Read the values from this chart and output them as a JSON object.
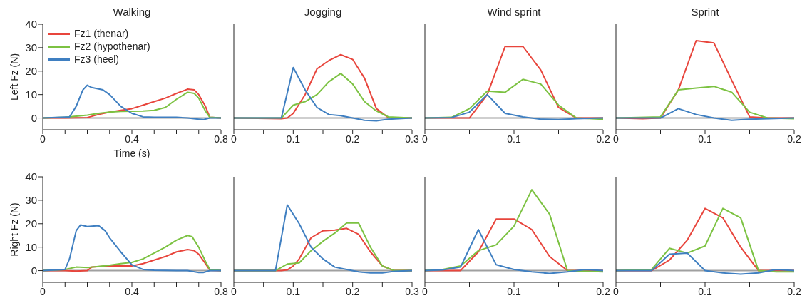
{
  "chart_data": [
    {
      "type": "line",
      "title": "Walking",
      "xlabel": "Time (s)",
      "ylabel": "Left Fz (N)",
      "legend": "top left",
      "xlim": [
        0,
        0.8
      ],
      "xticks": [
        0,
        {
          "value": 0.1,
          "label": null
        },
        {
          "value": 0.2,
          "label": null
        },
        {
          "value": 0.3,
          "label": null
        },
        0.4,
        {
          "value": 0.5,
          "label": null
        },
        {
          "value": 0.6,
          "label": null
        },
        {
          "value": 0.7,
          "label": null
        },
        0.8
      ],
      "ylim": [
        -5,
        40
      ],
      "yticks": [
        0,
        10,
        20,
        30,
        40
      ],
      "ref_lines": [
        {
          "axis": "y",
          "value": 0,
          "color": "#a0a0a0"
        }
      ],
      "series": [
        {
          "name": "Fz1 (thenar)",
          "color": "#e8453c",
          "x": [
            0,
            0.1,
            0.2,
            0.25,
            0.3,
            0.35,
            0.4,
            0.45,
            0.5,
            0.55,
            0.6,
            0.65,
            0.68,
            0.7,
            0.73,
            0.75,
            0.8
          ],
          "values": [
            0,
            0,
            0.2,
            1.5,
            2.5,
            3.3,
            4,
            5.5,
            7,
            8.5,
            10.5,
            12.3,
            12,
            10,
            5,
            0.3,
            0
          ]
        },
        {
          "name": "Fz2 (hypothenar)",
          "color": "#7cc242",
          "x": [
            0,
            0.1,
            0.15,
            0.2,
            0.25,
            0.3,
            0.35,
            0.4,
            0.45,
            0.5,
            0.55,
            0.6,
            0.65,
            0.68,
            0.7,
            0.73,
            0.75,
            0.8
          ],
          "values": [
            0,
            0.3,
            0.8,
            1.2,
            2,
            2.5,
            2.8,
            2.9,
            3,
            3.3,
            4.5,
            8,
            11,
            10.5,
            8.5,
            3,
            0.3,
            0
          ]
        },
        {
          "name": "Fz3 (heel)",
          "color": "#3f7fc1",
          "x": [
            0,
            0.12,
            0.15,
            0.18,
            0.2,
            0.22,
            0.27,
            0.3,
            0.35,
            0.4,
            0.45,
            0.5,
            0.6,
            0.65,
            0.7,
            0.72,
            0.75,
            0.8
          ],
          "values": [
            0,
            0.5,
            5,
            12,
            14,
            13,
            12,
            10,
            5,
            2,
            0.5,
            0.3,
            0.3,
            0,
            -0.5,
            -0.7,
            0,
            0
          ]
        }
      ]
    },
    {
      "type": "line",
      "title": "Jogging",
      "tick_labels": "x",
      "xlim": [
        0,
        0.3
      ],
      "xticks": [
        0,
        {
          "value": 0.05,
          "label": null
        },
        0.1,
        {
          "value": 0.15,
          "label": null
        },
        0.2,
        {
          "value": 0.25,
          "label": null
        },
        0.3
      ],
      "ylim": [
        -5,
        40
      ],
      "yticks": [
        0,
        10,
        20,
        30,
        40
      ],
      "ref_lines": [
        {
          "axis": "y",
          "value": 0,
          "color": "#a0a0a0"
        }
      ],
      "series": [
        {
          "color": "#e8453c",
          "x": [
            0,
            0.08,
            0.09,
            0.1,
            0.12,
            0.14,
            0.16,
            0.18,
            0.2,
            0.22,
            0.24,
            0.26,
            0.3
          ],
          "values": [
            0,
            -0.3,
            0,
            2,
            10,
            21,
            24.5,
            27,
            25,
            17,
            4,
            0.2,
            0
          ]
        },
        {
          "color": "#7cc242",
          "x": [
            0,
            0.08,
            0.1,
            0.12,
            0.14,
            0.16,
            0.18,
            0.2,
            0.22,
            0.24,
            0.26,
            0.3
          ],
          "values": [
            0,
            0,
            5.5,
            7,
            10,
            15.5,
            19,
            14.5,
            7,
            3,
            0.5,
            0
          ]
        },
        {
          "color": "#3f7fc1",
          "x": [
            0,
            0.08,
            0.1,
            0.12,
            0.14,
            0.16,
            0.18,
            0.2,
            0.22,
            0.24,
            0.26,
            0.3
          ],
          "values": [
            0,
            0,
            21.5,
            12,
            4.5,
            1.5,
            1,
            0,
            -1,
            -1.2,
            -0.5,
            0
          ]
        }
      ]
    },
    {
      "type": "line",
      "title": "Wind sprint",
      "tick_labels": "x",
      "xlim": [
        0,
        0.2
      ],
      "xticks": [
        0,
        {
          "value": 0.05,
          "label": null
        },
        0.1,
        {
          "value": 0.15,
          "label": null
        },
        0.2
      ],
      "ylim": [
        -5,
        40
      ],
      "yticks": [
        0,
        10,
        20,
        30,
        40
      ],
      "ref_lines": [
        {
          "axis": "y",
          "value": 0,
          "color": "#a0a0a0"
        }
      ],
      "series": [
        {
          "color": "#e8453c",
          "x": [
            0,
            0.03,
            0.05,
            0.07,
            0.09,
            0.11,
            0.13,
            0.15,
            0.17,
            0.2
          ],
          "values": [
            0,
            0,
            0,
            10,
            30.5,
            30.5,
            20.5,
            4.5,
            0,
            0
          ]
        },
        {
          "color": "#7cc242",
          "x": [
            0,
            0.03,
            0.05,
            0.07,
            0.09,
            0.11,
            0.13,
            0.15,
            0.17,
            0.2
          ],
          "values": [
            0,
            0.3,
            4,
            11.5,
            11,
            16.5,
            14.5,
            5.5,
            0,
            -0.5
          ]
        },
        {
          "color": "#3f7fc1",
          "x": [
            0,
            0.03,
            0.05,
            0.07,
            0.09,
            0.11,
            0.13,
            0.15,
            0.17,
            0.2
          ],
          "values": [
            0,
            0.2,
            2.5,
            10,
            2,
            0.5,
            -0.5,
            -0.7,
            -0.3,
            0
          ]
        }
      ]
    },
    {
      "type": "line",
      "title": "Sprint",
      "tick_labels": "x",
      "xlim": [
        0,
        0.2
      ],
      "xticks": [
        0,
        {
          "value": 0.05,
          "label": null
        },
        0.1,
        {
          "value": 0.15,
          "label": null
        },
        0.2
      ],
      "ylim": [
        -5,
        40
      ],
      "yticks": [
        0,
        10,
        20,
        30,
        40
      ],
      "ref_lines": [
        {
          "axis": "y",
          "value": 0,
          "color": "#a0a0a0"
        }
      ],
      "series": [
        {
          "color": "#e8453c",
          "x": [
            0,
            0.03,
            0.05,
            0.07,
            0.09,
            0.11,
            0.13,
            0.15,
            0.17,
            0.2
          ],
          "values": [
            0,
            -0.3,
            0,
            12,
            33,
            32,
            16,
            0.5,
            0,
            0
          ]
        },
        {
          "color": "#7cc242",
          "x": [
            0,
            0.05,
            0.07,
            0.09,
            0.11,
            0.13,
            0.15,
            0.17,
            0.2
          ],
          "values": [
            0,
            0.5,
            12,
            12.8,
            13.5,
            11,
            2.5,
            0,
            -0.3
          ]
        },
        {
          "color": "#3f7fc1",
          "x": [
            0,
            0.05,
            0.07,
            0.09,
            0.11,
            0.13,
            0.15,
            0.2
          ],
          "values": [
            0,
            0,
            4,
            1.5,
            0,
            -1,
            -0.5,
            0
          ]
        }
      ]
    },
    {
      "type": "line",
      "ylabel": "Right Fz (N)",
      "xlim": [
        0,
        0.8
      ],
      "xticks": [
        0,
        {
          "value": 0.1,
          "label": null
        },
        {
          "value": 0.2,
          "label": null
        },
        {
          "value": 0.3,
          "label": null
        },
        0.4,
        {
          "value": 0.5,
          "label": null
        },
        {
          "value": 0.6,
          "label": null
        },
        {
          "value": 0.7,
          "label": null
        },
        0.8
      ],
      "ylim": [
        -5,
        40
      ],
      "yticks": [
        0,
        10,
        20,
        30,
        40
      ],
      "ref_lines": [
        {
          "axis": "y",
          "value": 0,
          "color": "#a0a0a0"
        }
      ],
      "series": [
        {
          "color": "#e8453c",
          "x": [
            0,
            0.1,
            0.15,
            0.2,
            0.22,
            0.3,
            0.4,
            0.45,
            0.5,
            0.55,
            0.6,
            0.65,
            0.68,
            0.7,
            0.73,
            0.75,
            0.8
          ],
          "values": [
            0,
            0,
            -0.2,
            0,
            1.5,
            2,
            2,
            3,
            4.5,
            6,
            8,
            9,
            8.5,
            7,
            3,
            0.2,
            0
          ]
        },
        {
          "color": "#7cc242",
          "x": [
            0,
            0.1,
            0.15,
            0.2,
            0.25,
            0.3,
            0.35,
            0.4,
            0.45,
            0.5,
            0.55,
            0.6,
            0.65,
            0.67,
            0.7,
            0.73,
            0.75,
            0.8
          ],
          "values": [
            0,
            0.5,
            1.5,
            1.3,
            1.8,
            2.3,
            3,
            3.5,
            5,
            7.5,
            10,
            13,
            15,
            14.5,
            10,
            4,
            0.5,
            0
          ]
        },
        {
          "color": "#3f7fc1",
          "x": [
            0,
            0.1,
            0.12,
            0.15,
            0.17,
            0.2,
            0.25,
            0.28,
            0.3,
            0.35,
            0.4,
            0.45,
            0.5,
            0.6,
            0.65,
            0.7,
            0.72,
            0.75,
            0.8
          ],
          "values": [
            0,
            0.5,
            5,
            17,
            19.5,
            18.8,
            19.2,
            17,
            14,
            8,
            2.5,
            0.5,
            0.2,
            0,
            0,
            -0.8,
            -0.8,
            0,
            0
          ]
        }
      ]
    },
    {
      "type": "line",
      "tick_labels": "x",
      "xlim": [
        0,
        0.3
      ],
      "xticks": [
        0,
        {
          "value": 0.05,
          "label": null
        },
        0.1,
        {
          "value": 0.15,
          "label": null
        },
        0.2,
        {
          "value": 0.25,
          "label": null
        },
        0.3
      ],
      "ylim": [
        -5,
        40
      ],
      "yticks": [
        0,
        10,
        20,
        30,
        40
      ],
      "ref_lines": [
        {
          "axis": "y",
          "value": 0,
          "color": "#a0a0a0"
        }
      ],
      "series": [
        {
          "color": "#e8453c",
          "x": [
            0,
            0.08,
            0.09,
            0.1,
            0.11,
            0.13,
            0.15,
            0.17,
            0.19,
            0.21,
            0.23,
            0.25,
            0.27,
            0.3
          ],
          "values": [
            0,
            0,
            0.3,
            2,
            5,
            14,
            17,
            17.3,
            18,
            15.5,
            8,
            2,
            0,
            0
          ]
        },
        {
          "color": "#7cc242",
          "x": [
            0,
            0.07,
            0.09,
            0.11,
            0.13,
            0.15,
            0.17,
            0.19,
            0.21,
            0.23,
            0.25,
            0.27,
            0.3
          ],
          "values": [
            0,
            0,
            2.8,
            3.3,
            8.5,
            12.5,
            16,
            20.3,
            20.3,
            10,
            2,
            0,
            0
          ]
        },
        {
          "color": "#3f7fc1",
          "x": [
            0,
            0.07,
            0.09,
            0.11,
            0.13,
            0.15,
            0.17,
            0.19,
            0.21,
            0.23,
            0.25,
            0.27,
            0.3
          ],
          "values": [
            0,
            0,
            28,
            20,
            10,
            5,
            1.5,
            0.5,
            -0.5,
            -1,
            -1,
            -0.3,
            0
          ]
        }
      ]
    },
    {
      "type": "line",
      "tick_labels": "x",
      "xlim": [
        0,
        0.2
      ],
      "xticks": [
        0,
        {
          "value": 0.05,
          "label": null
        },
        0.1,
        {
          "value": 0.15,
          "label": null
        },
        0.2
      ],
      "ylim": [
        -5,
        40
      ],
      "yticks": [
        0,
        10,
        20,
        30,
        40
      ],
      "ref_lines": [
        {
          "axis": "y",
          "value": 0,
          "color": "#a0a0a0"
        }
      ],
      "series": [
        {
          "color": "#e8453c",
          "x": [
            0,
            0.02,
            0.04,
            0.06,
            0.08,
            0.1,
            0.12,
            0.14,
            0.16,
            0.2
          ],
          "values": [
            0,
            0,
            0,
            8,
            22,
            22,
            17.5,
            6,
            0,
            0
          ]
        },
        {
          "color": "#7cc242",
          "x": [
            0,
            0.02,
            0.04,
            0.06,
            0.08,
            0.1,
            0.12,
            0.14,
            0.16,
            0.2
          ],
          "values": [
            0,
            0.5,
            2,
            8.5,
            11,
            19,
            34.5,
            24,
            0,
            -0.5
          ]
        },
        {
          "color": "#3f7fc1",
          "x": [
            0,
            0.02,
            0.04,
            0.06,
            0.08,
            0.1,
            0.12,
            0.14,
            0.16,
            0.18,
            0.2
          ],
          "values": [
            0,
            0.3,
            1.5,
            17.5,
            2.5,
            0.5,
            -0.5,
            -1.2,
            -0.5,
            0.5,
            0
          ]
        }
      ]
    },
    {
      "type": "line",
      "tick_labels": "x",
      "xlim": [
        0,
        0.2
      ],
      "xticks": [
        0,
        {
          "value": 0.05,
          "label": null
        },
        0.1,
        {
          "value": 0.15,
          "label": null
        },
        0.2
      ],
      "ylim": [
        -5,
        40
      ],
      "yticks": [
        0,
        10,
        20,
        30,
        40
      ],
      "ref_lines": [
        {
          "axis": "y",
          "value": 0,
          "color": "#a0a0a0"
        }
      ],
      "series": [
        {
          "color": "#e8453c",
          "x": [
            0,
            0.04,
            0.06,
            0.08,
            0.1,
            0.12,
            0.14,
            0.16,
            0.2
          ],
          "values": [
            0,
            0,
            4.5,
            13,
            26.5,
            22.5,
            10,
            0,
            0
          ]
        },
        {
          "color": "#7cc242",
          "x": [
            0,
            0.04,
            0.06,
            0.08,
            0.1,
            0.12,
            0.14,
            0.16,
            0.18,
            0.2
          ],
          "values": [
            0,
            0.5,
            9.5,
            7.5,
            10.5,
            26.5,
            22.5,
            0,
            -0.5,
            -0.5
          ]
        },
        {
          "color": "#3f7fc1",
          "x": [
            0,
            0.04,
            0.06,
            0.08,
            0.1,
            0.12,
            0.14,
            0.16,
            0.18,
            0.2
          ],
          "values": [
            0,
            0,
            7,
            7.5,
            0,
            -1,
            -1.5,
            -1,
            0.5,
            0
          ]
        }
      ]
    }
  ]
}
